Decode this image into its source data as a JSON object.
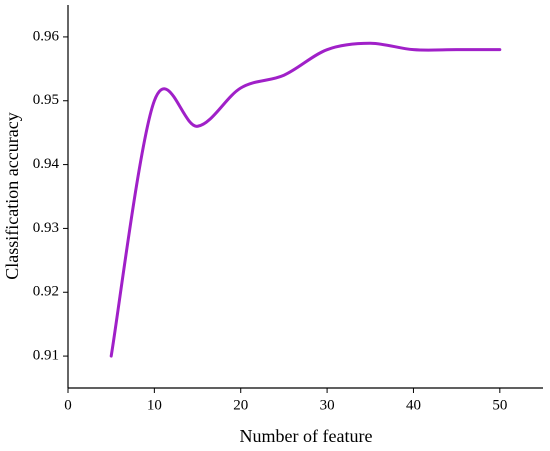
{
  "chart_data": {
    "type": "line",
    "x_label": "Number of feature",
    "y_label": "Classification accuracy",
    "x": [
      5,
      10,
      15,
      20,
      25,
      30,
      35,
      40,
      45,
      50
    ],
    "series": [
      {
        "color": "#a020c8",
        "values": [
          0.91,
          0.95,
          0.946,
          0.952,
          0.954,
          0.958,
          0.959,
          0.958,
          0.958,
          0.958
        ]
      }
    ],
    "xlim": [
      0,
      55
    ],
    "xticks": [
      0,
      10,
      20,
      30,
      40,
      50
    ],
    "ylim": [
      0.905,
      0.965
    ],
    "yticks": [
      0.91,
      0.92,
      0.93,
      0.94,
      0.95,
      0.96
    ],
    "smooth": true
  }
}
